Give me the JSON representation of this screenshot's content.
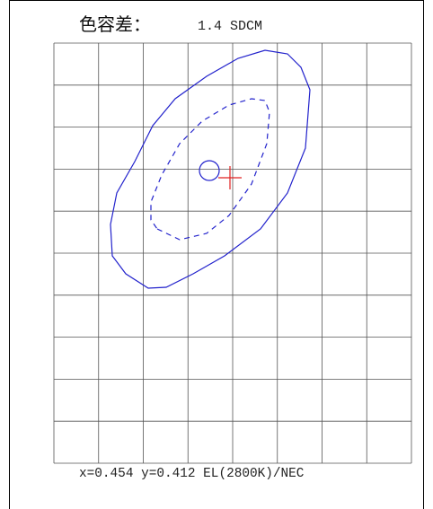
{
  "title": "色容差：",
  "value": "1.4 SDCM",
  "footer": "x=0.454 y=0.412 EL(2800K)/NEC"
}
